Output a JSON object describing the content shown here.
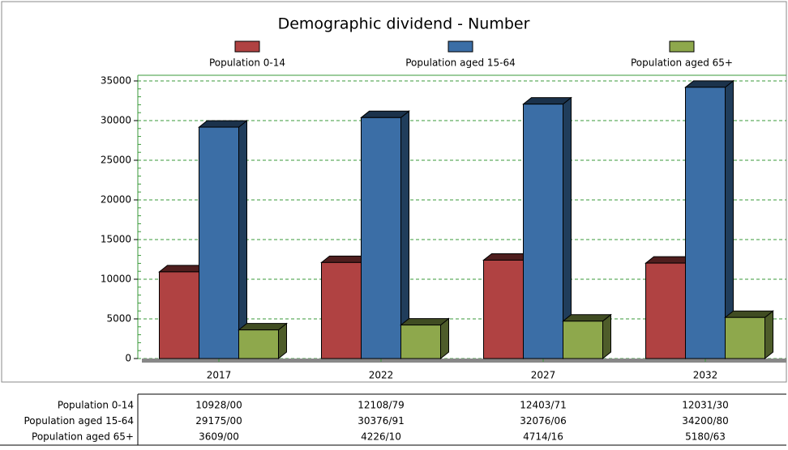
{
  "chart_data": {
    "type": "bar3d",
    "title": "Demographic dividend - Number",
    "categories": [
      "2017",
      "2022",
      "2027",
      "2032"
    ],
    "series": [
      {
        "name": "Population 0-14",
        "color": "#b04242",
        "values": [
          10928.0,
          12108.79,
          12403.71,
          12031.3
        ],
        "value_labels": [
          "10928/00",
          "12108/79",
          "12403/71",
          "12031/30"
        ]
      },
      {
        "name": "Population aged 15-64",
        "color": "#3b6ea6",
        "values": [
          29175.0,
          30376.91,
          32076.06,
          34200.8
        ],
        "value_labels": [
          "29175/00",
          "30376/91",
          "32076/06",
          "34200/80"
        ]
      },
      {
        "name": "Population aged 65+",
        "color": "#8ea84c",
        "values": [
          3609.0,
          4226.1,
          4714.16,
          5180.63
        ],
        "value_labels": [
          "3609/00",
          "4226/10",
          "4714/16",
          "5180/63"
        ]
      }
    ],
    "ylim": [
      0,
      35000
    ],
    "yticks": [
      0,
      5000,
      10000,
      15000,
      20000,
      25000,
      30000,
      35000
    ],
    "grid": true
  }
}
